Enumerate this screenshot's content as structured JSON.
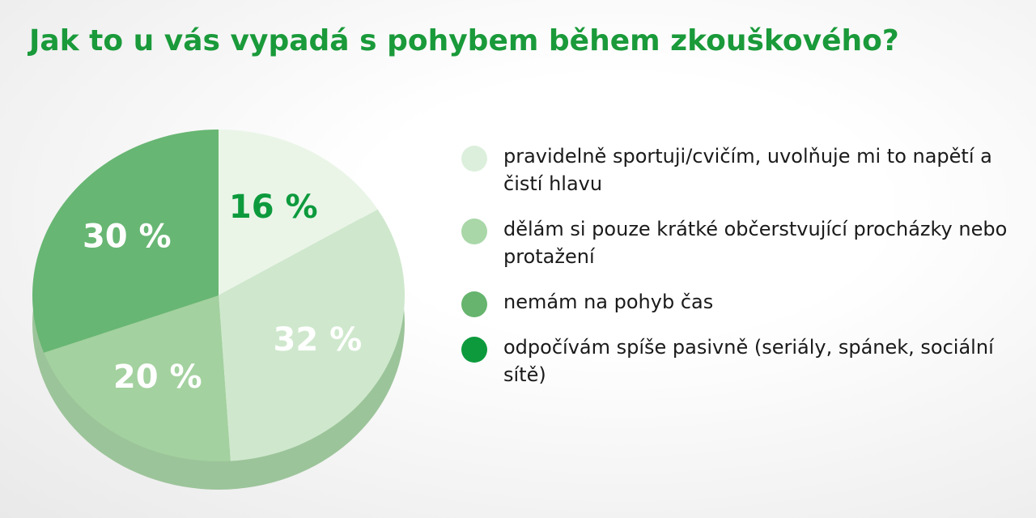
{
  "chart_data": {
    "type": "pie",
    "title": "Jak to u vás vypadá s pohybem během zkouškového?",
    "categories": [
      "pravidelně sportuji/cvičím, uvolňuje mi to napětí a čistí hlavu",
      "dělám si pouze krátké občerstvující procházky nebo protažení",
      "nemám na pohyb čas",
      "odpočívám spíše pasivně (seriály, spánek, sociální sítě)"
    ],
    "values": [
      16,
      32,
      20,
      30
    ],
    "value_labels": [
      "16 %",
      "32 %",
      "20 %",
      "30 %"
    ],
    "colors": [
      "#eaf5e8",
      "#cfe8cd",
      "#a3d19f",
      "#67b673"
    ],
    "legend_colors": [
      "#dcefdc",
      "#a9d7a8",
      "#66b46e",
      "#0d9a3d"
    ],
    "label_colors": [
      "#0d9a3d",
      "#ffffff",
      "#ffffff",
      "#ffffff"
    ]
  }
}
